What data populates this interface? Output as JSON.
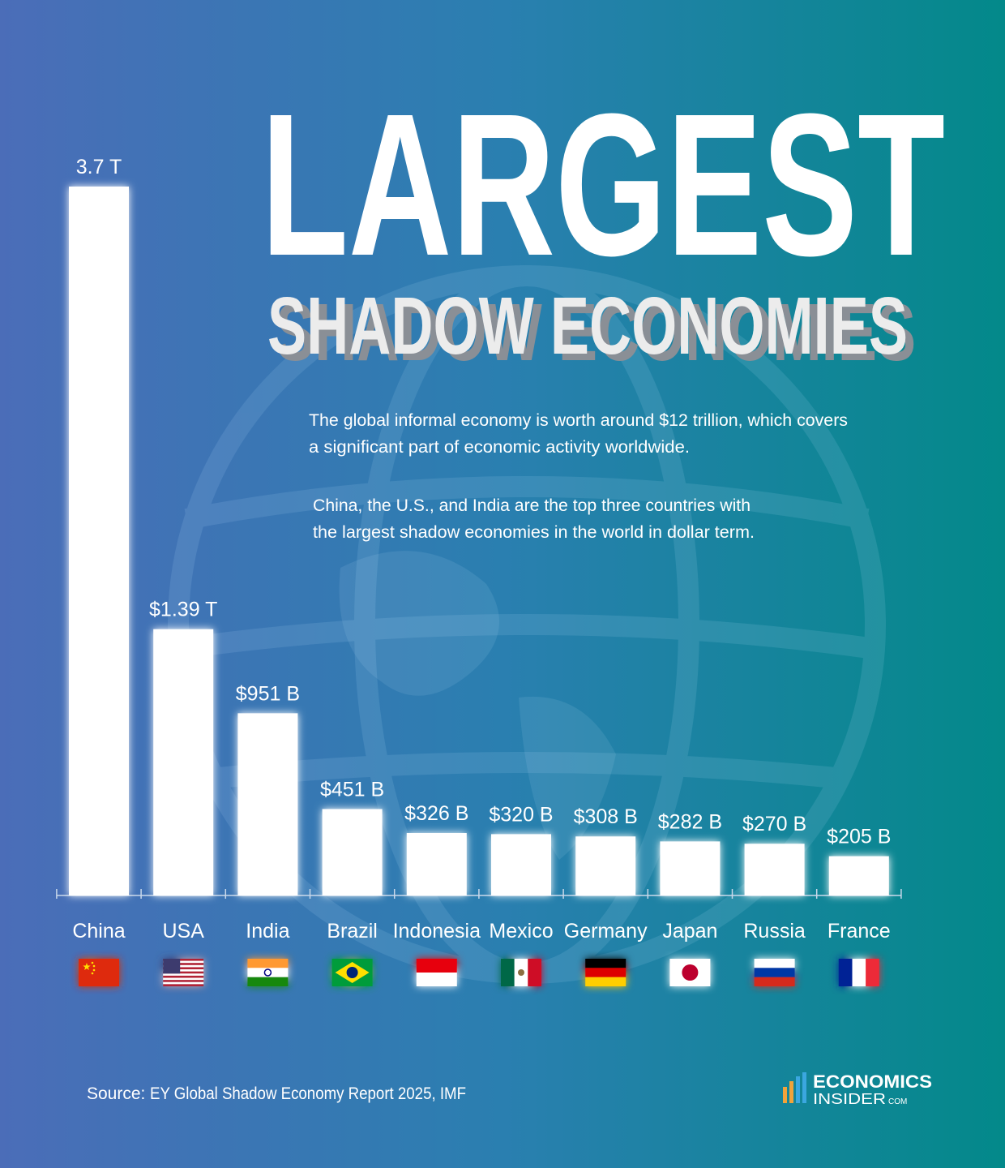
{
  "chart_data": {
    "type": "bar",
    "title": "LARGEST",
    "subtitle": "SHADOW ECONOMIES",
    "description": [
      [
        "The global informal economy is worth around $12 trillion, which covers",
        "a significant part of economic activity worldwide."
      ],
      [
        "China, the U.S., and India are the top three countries with",
        "the largest shadow economies in the world in dollar term."
      ]
    ],
    "categories": [
      "China",
      "USA",
      "India",
      "Brazil",
      "Indonesia",
      "Mexico",
      "Germany",
      "Japan",
      "Russia",
      "France"
    ],
    "values": [
      3700,
      1390,
      951,
      451,
      326,
      320,
      308,
      282,
      270,
      205
    ],
    "value_labels": [
      "3.7 T",
      "$1.39 T",
      "$951 B",
      "$451 B",
      "$326 B",
      "$320 B",
      "$308 B",
      "$282 B",
      "$270 B",
      "$205 B"
    ],
    "color": "#ffffff",
    "source_label": "Source:",
    "source": "EY Global Shadow Economy Report 2025, IMF",
    "brand": [
      "ECONOMICS",
      "INSIDER",
      "COM"
    ]
  }
}
